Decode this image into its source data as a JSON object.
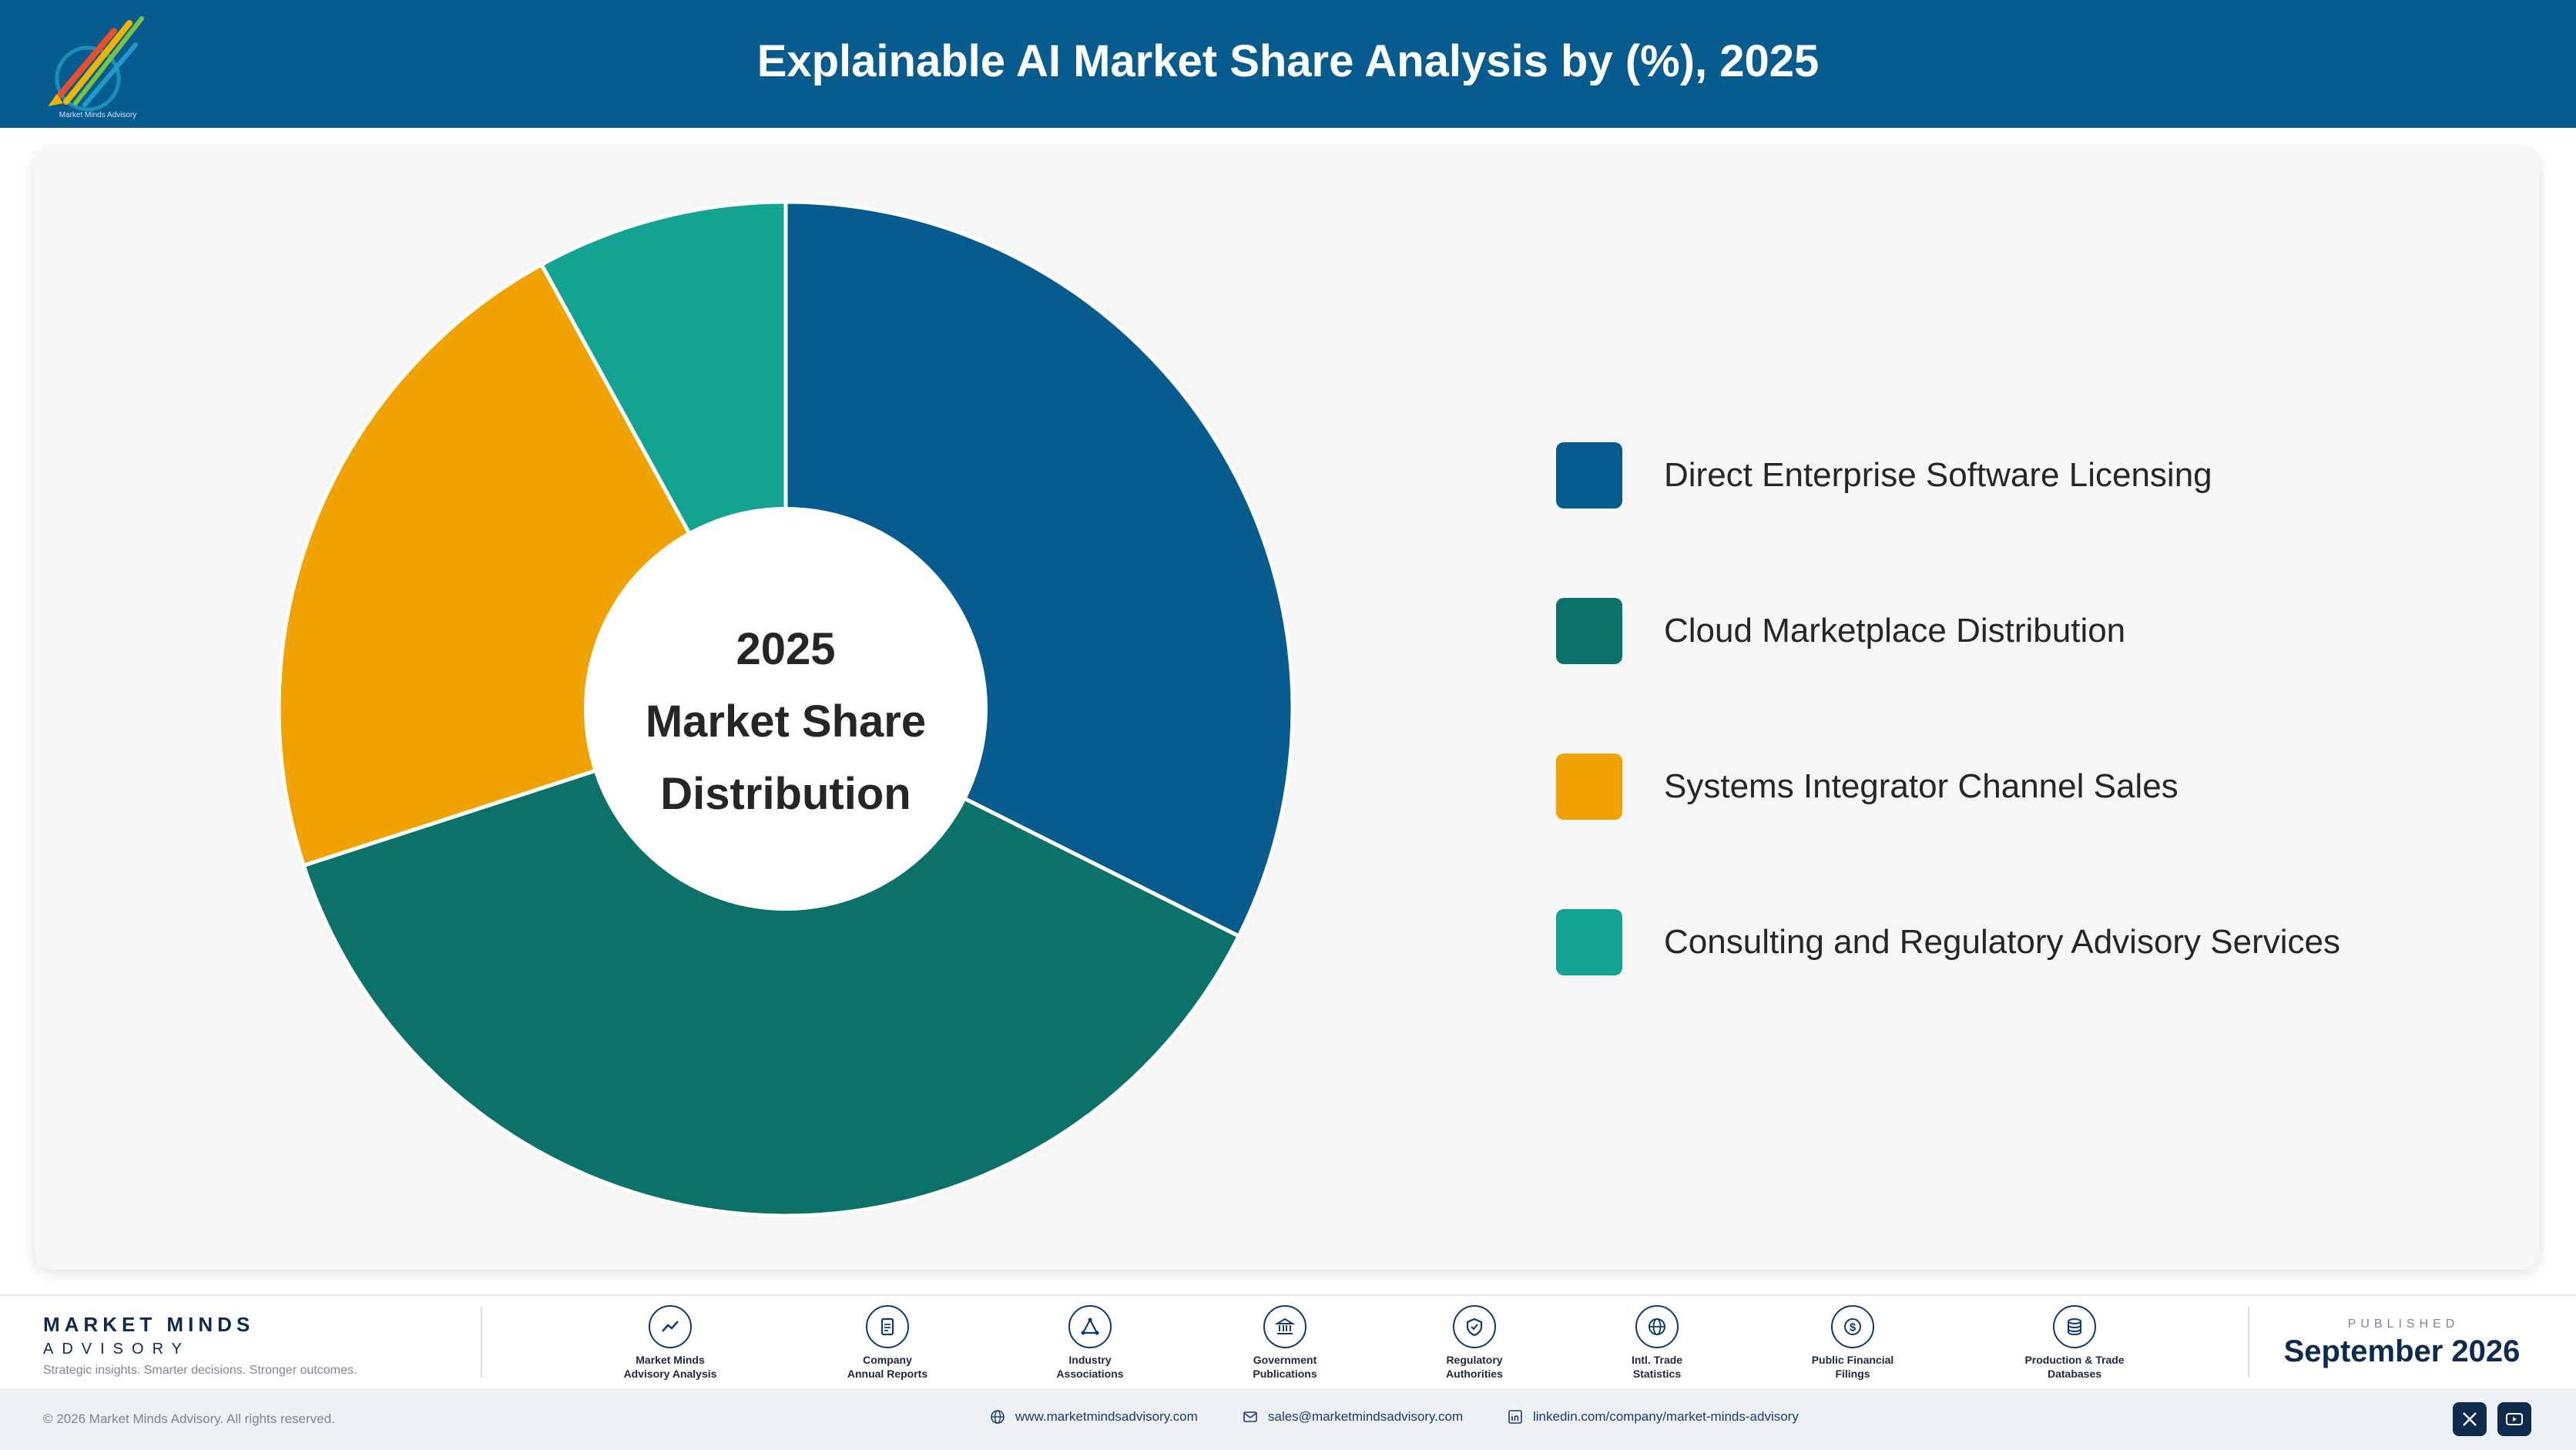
{
  "header": {
    "title": "Explainable AI Market Share Analysis by (%), 2025",
    "logo_text": "Market Minds Advisory"
  },
  "chart_data": {
    "type": "pie",
    "title": "Explainable AI Market Share Analysis by (%), 2025",
    "center_label": [
      "2025",
      "Market Share",
      "Distribution"
    ],
    "donut": true,
    "legend_position": "right",
    "series": [
      {
        "name": "Direct Enterprise Software Licensing",
        "value": 32.4,
        "color": "#065b8f"
      },
      {
        "name": "Cloud Marketplace Distribution",
        "value": 37.6,
        "color": "#0b7169"
      },
      {
        "name": "Systems Integrator Channel Sales",
        "value": 22.0,
        "color": "#f0a200"
      },
      {
        "name": "Consulting and Regulatory Advisory Services",
        "value": 8.0,
        "color": "#12a393"
      }
    ]
  },
  "footer": {
    "brand_name": "MARKET MINDS",
    "brand_sub": "ADVISORY",
    "tagline": "Strategic insights. Smarter decisions. Stronger outcomes.",
    "sources": [
      {
        "line1": "Market Minds",
        "line2": "Advisory Analysis",
        "icon": "chart-line-icon"
      },
      {
        "line1": "Company",
        "line2": "Annual Reports",
        "icon": "document-icon"
      },
      {
        "line1": "Industry",
        "line2": "Associations",
        "icon": "network-icon"
      },
      {
        "line1": "Government",
        "line2": "Publications",
        "icon": "bank-icon"
      },
      {
        "line1": "Regulatory",
        "line2": "Authorities",
        "icon": "shield-icon"
      },
      {
        "line1": "Intl. Trade",
        "line2": "Statistics",
        "icon": "globe-icon"
      },
      {
        "line1": "Public Financial",
        "line2": "Filings",
        "icon": "dollar-icon"
      },
      {
        "line1": "Production & Trade",
        "line2": "Databases",
        "icon": "database-icon"
      }
    ],
    "published_label": "PUBLISHED",
    "published_date": "September 2026"
  },
  "bottom_bar": {
    "copyright": "© 2026 Market Minds Advisory. All rights reserved.",
    "website": "www.marketmindsadvisory.com",
    "email": "sales@marketmindsadvisory.com",
    "linkedin": "linkedin.com/company/market-minds-advisory"
  }
}
